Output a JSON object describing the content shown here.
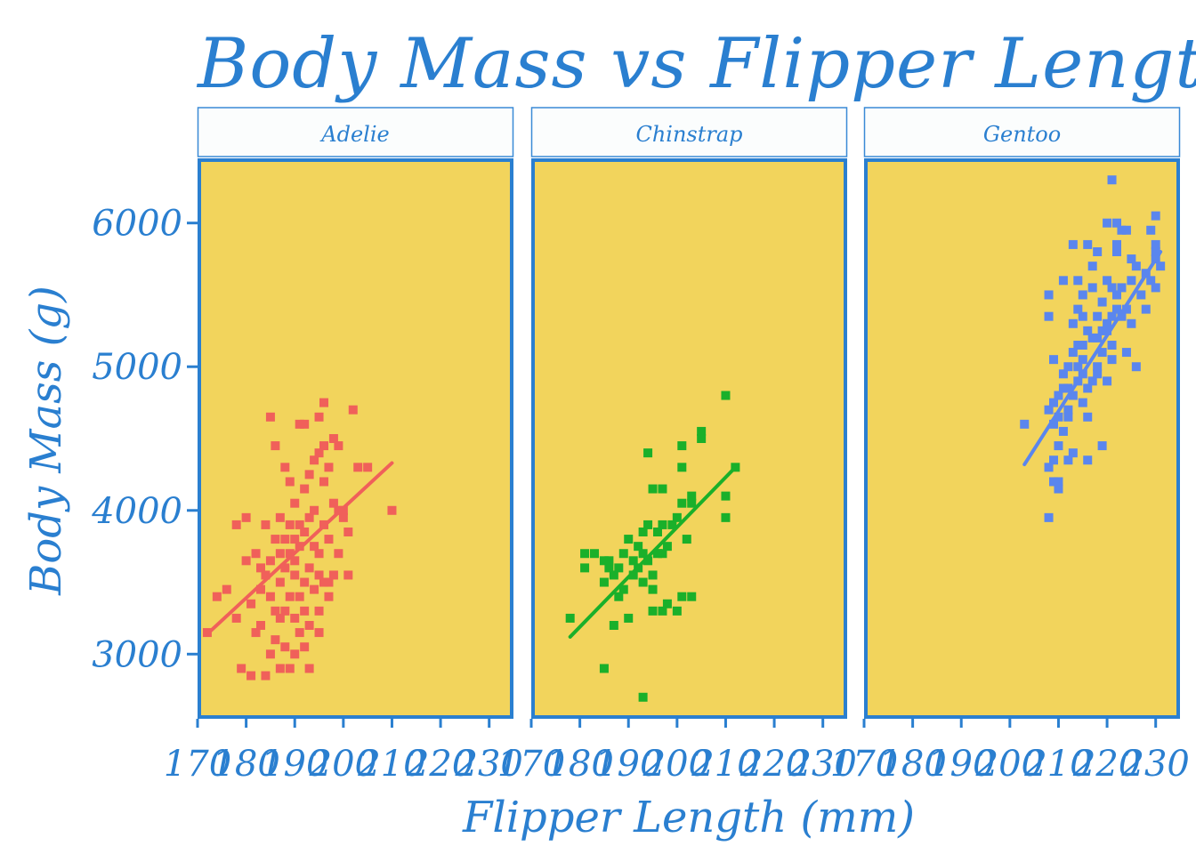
{
  "chart_data": {
    "type": "scatter",
    "title": "Body Mass vs Flipper Length",
    "xlabel": "Flipper Length (mm)",
    "ylabel": "Body Mass (g)",
    "xlim": [
      170,
      235
    ],
    "ylim": [
      2550,
      6450
    ],
    "x_ticks": [
      170,
      180,
      190,
      200,
      210,
      220,
      230
    ],
    "y_ticks": [
      3000,
      4000,
      5000,
      6000
    ],
    "marker": "square",
    "trend_line": "linear fit per panel",
    "panel_background": "#f2d45c",
    "frame_color": "#2a7fd0",
    "strip_background": "#fbfdfd",
    "panels": [
      {
        "name": "Adelie",
        "color": "#f0605a",
        "fit": {
          "x": [
            172,
            210
          ],
          "y": [
            3140,
            4330
          ]
        },
        "points": [
          [
            172,
            3150
          ],
          [
            174,
            3400
          ],
          [
            176,
            3450
          ],
          [
            178,
            3250
          ],
          [
            178,
            3900
          ],
          [
            179,
            2900
          ],
          [
            180,
            3950
          ],
          [
            180,
            3650
          ],
          [
            181,
            3350
          ],
          [
            181,
            2850
          ],
          [
            182,
            3150
          ],
          [
            182,
            3700
          ],
          [
            183,
            3600
          ],
          [
            183,
            3450
          ],
          [
            183,
            3200
          ],
          [
            184,
            2850
          ],
          [
            184,
            3550
          ],
          [
            184,
            3900
          ],
          [
            185,
            3000
          ],
          [
            185,
            4650
          ],
          [
            185,
            3400
          ],
          [
            185,
            3650
          ],
          [
            186,
            3300
          ],
          [
            186,
            3800
          ],
          [
            186,
            4450
          ],
          [
            186,
            3100
          ],
          [
            187,
            3500
          ],
          [
            187,
            3950
          ],
          [
            187,
            3250
          ],
          [
            187,
            3700
          ],
          [
            187,
            2900
          ],
          [
            188,
            3800
          ],
          [
            188,
            3600
          ],
          [
            188,
            3300
          ],
          [
            188,
            4300
          ],
          [
            188,
            3050
          ],
          [
            189,
            2900
          ],
          [
            189,
            3400
          ],
          [
            189,
            3900
          ],
          [
            189,
            3700
          ],
          [
            189,
            4200
          ],
          [
            190,
            3550
          ],
          [
            190,
            3800
          ],
          [
            190,
            3250
          ],
          [
            190,
            4050
          ],
          [
            190,
            3000
          ],
          [
            190,
            3650
          ],
          [
            191,
            4600
          ],
          [
            191,
            3400
          ],
          [
            191,
            3900
          ],
          [
            191,
            3150
          ],
          [
            191,
            3750
          ],
          [
            192,
            3500
          ],
          [
            192,
            4150
          ],
          [
            192,
            3300
          ],
          [
            192,
            4600
          ],
          [
            192,
            3850
          ],
          [
            192,
            3050
          ],
          [
            193,
            3600
          ],
          [
            193,
            4250
          ],
          [
            193,
            3200
          ],
          [
            193,
            3950
          ],
          [
            193,
            2900
          ],
          [
            194,
            3750
          ],
          [
            194,
            4350
          ],
          [
            194,
            3450
          ],
          [
            194,
            4000
          ],
          [
            195,
            3300
          ],
          [
            195,
            3700
          ],
          [
            195,
            4650
          ],
          [
            195,
            4400
          ],
          [
            195,
            3550
          ],
          [
            195,
            3150
          ],
          [
            196,
            3500
          ],
          [
            196,
            4200
          ],
          [
            196,
            4750
          ],
          [
            196,
            3900
          ],
          [
            196,
            4450
          ],
          [
            197,
            3400
          ],
          [
            197,
            3800
          ],
          [
            197,
            4300
          ],
          [
            197,
            3500
          ],
          [
            198,
            4050
          ],
          [
            198,
            4500
          ],
          [
            198,
            3550
          ],
          [
            199,
            4000
          ],
          [
            199,
            3700
          ],
          [
            199,
            4450
          ],
          [
            200,
            3950
          ],
          [
            200,
            4000
          ],
          [
            201,
            3850
          ],
          [
            201,
            3550
          ],
          [
            202,
            4700
          ],
          [
            203,
            4300
          ],
          [
            205,
            4300
          ],
          [
            210,
            4000
          ]
        ]
      },
      {
        "name": "Chinstrap",
        "color": "#1ab02a",
        "fit": {
          "x": [
            178,
            212
          ],
          "y": [
            3120,
            4300
          ]
        },
        "points": [
          [
            178,
            3250
          ],
          [
            181,
            3700
          ],
          [
            181,
            3600
          ],
          [
            183,
            3700
          ],
          [
            185,
            3650
          ],
          [
            185,
            3500
          ],
          [
            185,
            2900
          ],
          [
            186,
            3650
          ],
          [
            186,
            3600
          ],
          [
            187,
            3550
          ],
          [
            187,
            3200
          ],
          [
            188,
            3400
          ],
          [
            188,
            3600
          ],
          [
            189,
            3450
          ],
          [
            189,
            3700
          ],
          [
            190,
            3250
          ],
          [
            190,
            3800
          ],
          [
            191,
            3650
          ],
          [
            191,
            3550
          ],
          [
            192,
            3600
          ],
          [
            192,
            3750
          ],
          [
            193,
            3850
          ],
          [
            193,
            3500
          ],
          [
            193,
            2700
          ],
          [
            193,
            3700
          ],
          [
            194,
            3900
          ],
          [
            194,
            3650
          ],
          [
            194,
            4400
          ],
          [
            195,
            3450
          ],
          [
            195,
            4150
          ],
          [
            195,
            3300
          ],
          [
            195,
            3550
          ],
          [
            196,
            3700
          ],
          [
            196,
            3850
          ],
          [
            197,
            4150
          ],
          [
            197,
            3900
          ],
          [
            197,
            3300
          ],
          [
            197,
            3700
          ],
          [
            198,
            3350
          ],
          [
            198,
            3750
          ],
          [
            199,
            3900
          ],
          [
            200,
            3300
          ],
          [
            200,
            3950
          ],
          [
            201,
            3400
          ],
          [
            201,
            4050
          ],
          [
            201,
            4300
          ],
          [
            201,
            4450
          ],
          [
            202,
            3800
          ],
          [
            203,
            4100
          ],
          [
            203,
            4050
          ],
          [
            203,
            3400
          ],
          [
            205,
            4550
          ],
          [
            205,
            4500
          ],
          [
            210,
            4800
          ],
          [
            210,
            3950
          ],
          [
            210,
            4100
          ],
          [
            212,
            4300
          ]
        ]
      },
      {
        "name": "Gentoo",
        "color": "#5a86ee",
        "fit": {
          "x": [
            203,
            231
          ],
          "y": [
            4320,
            5800
          ]
        },
        "points": [
          [
            203,
            4600
          ],
          [
            208,
            3950
          ],
          [
            208,
            4700
          ],
          [
            208,
            4300
          ],
          [
            208,
            5500
          ],
          [
            208,
            5350
          ],
          [
            209,
            4600
          ],
          [
            209,
            4200
          ],
          [
            209,
            4750
          ],
          [
            209,
            5050
          ],
          [
            209,
            4350
          ],
          [
            210,
            4150
          ],
          [
            210,
            4800
          ],
          [
            210,
            4450
          ],
          [
            210,
            4200
          ],
          [
            210,
            4650
          ],
          [
            211,
            4850
          ],
          [
            211,
            5600
          ],
          [
            211,
            4550
          ],
          [
            211,
            4950
          ],
          [
            212,
            4700
          ],
          [
            212,
            5000
          ],
          [
            212,
            4650
          ],
          [
            212,
            4350
          ],
          [
            212,
            4850
          ],
          [
            213,
            5300
          ],
          [
            213,
            5850
          ],
          [
            213,
            4800
          ],
          [
            213,
            5100
          ],
          [
            213,
            4400
          ],
          [
            214,
            5400
          ],
          [
            214,
            4900
          ],
          [
            214,
            5000
          ],
          [
            214,
            5150
          ],
          [
            214,
            5600
          ],
          [
            215,
            4950
          ],
          [
            215,
            5500
          ],
          [
            215,
            4750
          ],
          [
            215,
            5150
          ],
          [
            215,
            5350
          ],
          [
            215,
            5050
          ],
          [
            216,
            4650
          ],
          [
            216,
            5850
          ],
          [
            216,
            4850
          ],
          [
            216,
            5250
          ],
          [
            216,
            4350
          ],
          [
            217,
            5200
          ],
          [
            217,
            5550
          ],
          [
            217,
            4900
          ],
          [
            217,
            5700
          ],
          [
            218,
            5350
          ],
          [
            218,
            5000
          ],
          [
            218,
            5800
          ],
          [
            218,
            4950
          ],
          [
            218,
            5200
          ],
          [
            219,
            5100
          ],
          [
            219,
            4450
          ],
          [
            219,
            5450
          ],
          [
            219,
            5250
          ],
          [
            220,
            5300
          ],
          [
            220,
            6000
          ],
          [
            220,
            5250
          ],
          [
            220,
            5600
          ],
          [
            220,
            4900
          ],
          [
            221,
            5150
          ],
          [
            221,
            5550
          ],
          [
            221,
            6300
          ],
          [
            221,
            5350
          ],
          [
            221,
            5050
          ],
          [
            222,
            5500
          ],
          [
            222,
            5850
          ],
          [
            222,
            6000
          ],
          [
            222,
            5800
          ],
          [
            222,
            5400
          ],
          [
            223,
            5550
          ],
          [
            223,
            5950
          ],
          [
            223,
            5350
          ],
          [
            224,
            5950
          ],
          [
            224,
            5400
          ],
          [
            224,
            5100
          ],
          [
            225,
            5750
          ],
          [
            225,
            5600
          ],
          [
            225,
            5300
          ],
          [
            226,
            5000
          ],
          [
            226,
            5700
          ],
          [
            227,
            5500
          ],
          [
            228,
            5650
          ],
          [
            228,
            5400
          ],
          [
            229,
            5600
          ],
          [
            229,
            5950
          ],
          [
            230,
            5850
          ],
          [
            230,
            6050
          ],
          [
            230,
            5750
          ],
          [
            230,
            5550
          ],
          [
            230,
            5800
          ],
          [
            231,
            5700
          ]
        ]
      }
    ]
  }
}
